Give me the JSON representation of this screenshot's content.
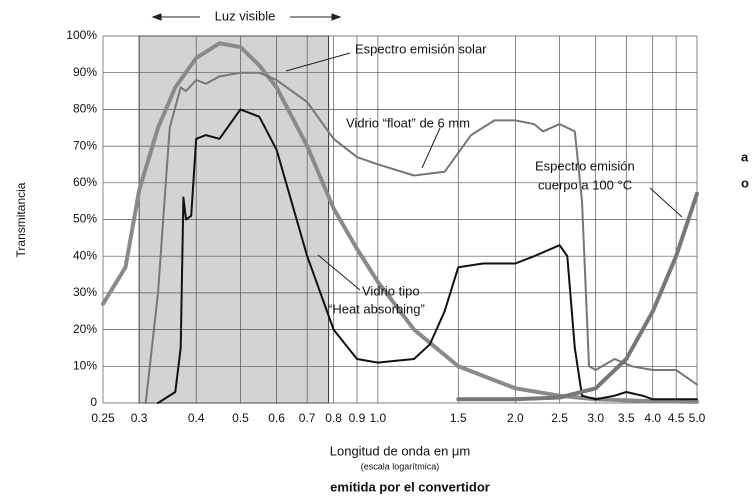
{
  "chart_data": {
    "type": "line",
    "xlabel": "Longitud de onda en μm",
    "xlabel_note": "(escala logarítmica)",
    "ylabel": "Transmitancia",
    "footer": "emitida por el convertidor",
    "xscale": "log",
    "xlim": [
      0.25,
      5.0
    ],
    "ylim": [
      0,
      100
    ],
    "xticks": [
      0.25,
      0.3,
      0.4,
      0.5,
      0.6,
      0.7,
      0.8,
      0.9,
      {
        "value": 1,
        "label": "1.0"
      },
      1.5,
      {
        "value": 2,
        "label": "2.0"
      },
      2.5,
      {
        "value": 3,
        "label": "3.0"
      },
      3.5,
      {
        "value": 4,
        "label": "4.0"
      },
      4.5,
      {
        "value": 5,
        "label": "5.0"
      }
    ],
    "yticks": [
      0,
      {
        "value": 10,
        "label": "10%"
      },
      {
        "value": 20,
        "label": "20%"
      },
      {
        "value": 30,
        "label": "30%"
      },
      {
        "value": 40,
        "label": "40%"
      },
      {
        "value": 50,
        "label": "50%"
      },
      {
        "value": 60,
        "label": "60%"
      },
      {
        "value": 70,
        "label": "70%"
      },
      {
        "value": 80,
        "label": "80%"
      },
      {
        "value": 90,
        "label": "90%"
      },
      {
        "value": 100,
        "label": "100%"
      }
    ],
    "grid": true,
    "visible_band": [
      0.3,
      0.78
    ],
    "band_color": "#d3d3d3",
    "series": [
      {
        "name": "Espectro emisión solar",
        "color": "#8a8a8a",
        "width": 4,
        "x": [
          0.25,
          0.28,
          0.3,
          0.33,
          0.36,
          0.4,
          0.45,
          0.5,
          0.55,
          0.6,
          0.7,
          0.8,
          0.9,
          1.0,
          1.2,
          1.5,
          2.0,
          2.5,
          3.0,
          4.0,
          5.0
        ],
        "values": [
          27,
          37,
          58,
          75,
          86,
          94,
          98,
          97,
          92,
          86,
          70,
          53,
          42,
          33,
          20,
          10,
          4,
          2,
          1,
          0.5,
          0.3
        ]
      },
      {
        "name": "Vidrio float de 6 mm",
        "color": "#777777",
        "width": 2,
        "x": [
          0.31,
          0.33,
          0.35,
          0.37,
          0.38,
          0.4,
          0.42,
          0.45,
          0.5,
          0.55,
          0.6,
          0.7,
          0.8,
          0.9,
          1.0,
          1.2,
          1.4,
          1.6,
          1.8,
          2.0,
          2.2,
          2.3,
          2.5,
          2.7,
          2.8,
          2.9,
          3.0,
          3.3,
          3.6,
          4.0,
          4.5,
          5.0
        ],
        "values": [
          0,
          30,
          75,
          86,
          85,
          88,
          87,
          89,
          90,
          90,
          88,
          82,
          72,
          67,
          65,
          62,
          63,
          73,
          77,
          77,
          76,
          74,
          76,
          74,
          55,
          10,
          9,
          12,
          10,
          9,
          9,
          5
        ]
      },
      {
        "name": "Vidrio tipo Heat absorbing",
        "color": "#111111",
        "width": 2,
        "x": [
          0.33,
          0.36,
          0.37,
          0.375,
          0.38,
          0.39,
          0.4,
          0.42,
          0.45,
          0.5,
          0.55,
          0.6,
          0.7,
          0.8,
          0.9,
          1.0,
          1.2,
          1.3,
          1.4,
          1.5,
          1.7,
          2.0,
          2.2,
          2.5,
          2.6,
          2.7,
          2.8,
          3.0,
          3.3,
          3.5,
          3.8,
          4.0,
          5.0
        ],
        "values": [
          0,
          3,
          15,
          56,
          50,
          51,
          72,
          73,
          72,
          80,
          78,
          69,
          40,
          20,
          12,
          11,
          12,
          16,
          25,
          37,
          38,
          38,
          40,
          43,
          40,
          15,
          2,
          1,
          2,
          3,
          2,
          1,
          1
        ]
      },
      {
        "name": "Espectro emisión cuerpo a 100 °C",
        "color": "#777777",
        "width": 4,
        "x": [
          1.5,
          2.0,
          2.5,
          3.0,
          3.5,
          4.0,
          4.5,
          5.0
        ],
        "values": [
          1,
          1,
          1.5,
          4,
          12,
          25,
          40,
          57
        ]
      }
    ],
    "annotations": [
      "Luz visible",
      "Espectro emisión solar",
      "Vidrio “float” de 6 mm",
      "Espectro emisión",
      "cuerpo a 100 °C",
      "Vidrio tipo",
      "“Heat absorbing”",
      "a",
      "o"
    ]
  }
}
